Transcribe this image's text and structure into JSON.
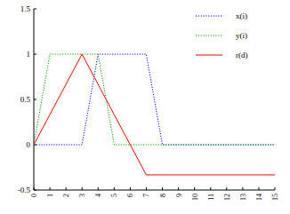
{
  "chart_data": {
    "type": "line",
    "x": [
      0,
      1,
      2,
      3,
      4,
      5,
      6,
      7,
      8,
      9,
      10,
      11,
      12,
      13,
      14,
      15
    ],
    "series": [
      {
        "name": "x(i)",
        "color": "#0000ff",
        "line_style": "dotted",
        "values": [
          0,
          0,
          0,
          0,
          1,
          1,
          1,
          1,
          0,
          0,
          0,
          0,
          0,
          0,
          0,
          0
        ]
      },
      {
        "name": "y(i)",
        "color": "#00a000",
        "line_style": "dotted",
        "values": [
          0,
          1,
          1,
          1,
          1,
          0,
          0,
          0,
          0,
          0,
          0,
          0,
          0,
          0,
          0,
          0
        ]
      },
      {
        "name": "r(d)",
        "color": "#ff0000",
        "line_style": "solid",
        "values": [
          0,
          0.333,
          0.667,
          1,
          0.667,
          0.333,
          0,
          -0.333,
          -0.333,
          -0.333,
          -0.333,
          -0.333,
          -0.333,
          -0.333,
          -0.333,
          -0.333
        ]
      }
    ],
    "xlim": [
      0,
      15
    ],
    "xticks": [
      0,
      1,
      2,
      3,
      4,
      5,
      6,
      7,
      8,
      9,
      10,
      11,
      12,
      13,
      14,
      15
    ],
    "ylim": [
      -0.5,
      1.5
    ],
    "yticks": [
      -0.5,
      0,
      0.5,
      1,
      1.5
    ],
    "grid": false,
    "legend": "upper right"
  }
}
